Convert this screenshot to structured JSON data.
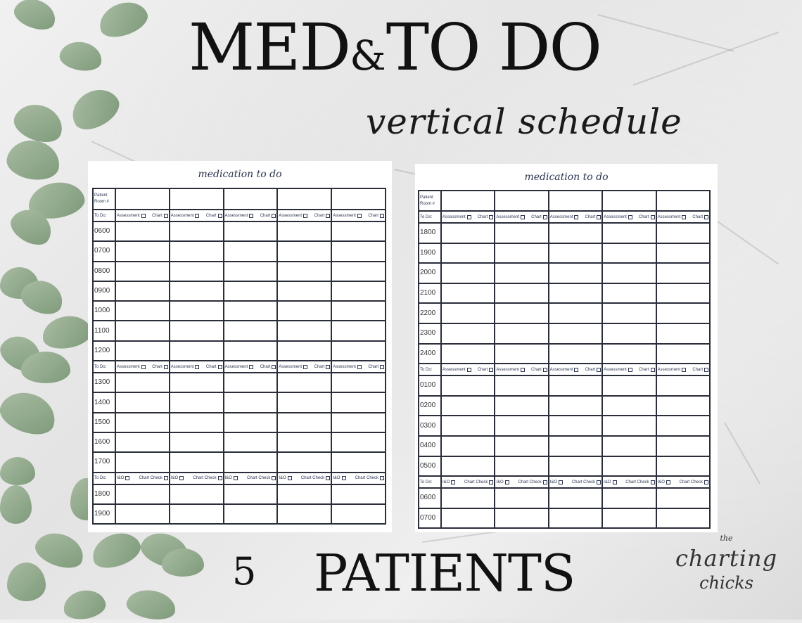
{
  "header": {
    "title_part1": "MED",
    "title_amp": "&",
    "title_part2": "TO DO",
    "subtitle": "vertical schedule"
  },
  "footer": {
    "count": "5",
    "label": "PATIENTS"
  },
  "logo": {
    "line1": "the",
    "line2": "charting",
    "line3": "chicks"
  },
  "colors": {
    "ink": "#2b3550",
    "grid": "#2a2d3a",
    "leaf": "#8fa88a"
  },
  "todo_label": "To Do:",
  "todo_sets": {
    "assessment": [
      "Assessment",
      "Chart"
    ],
    "io": [
      "I&O",
      "Chart Check"
    ]
  },
  "sheets": [
    {
      "title": "medication to do",
      "patient_label": "Patient Room #",
      "patient_columns": 5,
      "rows": [
        {
          "todo": "assessment"
        },
        {
          "time": "0600"
        },
        {
          "time": "0700"
        },
        {
          "time": "0800"
        },
        {
          "time": "0900"
        },
        {
          "time": "1000"
        },
        {
          "time": "1100"
        },
        {
          "time": "1200"
        },
        {
          "todo": "assessment"
        },
        {
          "time": "1300"
        },
        {
          "time": "1400"
        },
        {
          "time": "1500"
        },
        {
          "time": "1600"
        },
        {
          "time": "1700"
        },
        {
          "todo": "io"
        },
        {
          "time": "1800"
        },
        {
          "time": "1900"
        }
      ]
    },
    {
      "title": "medication to do",
      "patient_label": "Patient Room #",
      "patient_columns": 5,
      "rows": [
        {
          "todo": "assessment"
        },
        {
          "time": "1800"
        },
        {
          "time": "1900"
        },
        {
          "time": "2000"
        },
        {
          "time": "2100"
        },
        {
          "time": "2200"
        },
        {
          "time": "2300"
        },
        {
          "time": "2400"
        },
        {
          "todo": "assessment"
        },
        {
          "time": "0100"
        },
        {
          "time": "0200"
        },
        {
          "time": "0300"
        },
        {
          "time": "0400"
        },
        {
          "time": "0500"
        },
        {
          "todo": "io"
        },
        {
          "time": "0600"
        },
        {
          "time": "0700"
        }
      ]
    }
  ]
}
